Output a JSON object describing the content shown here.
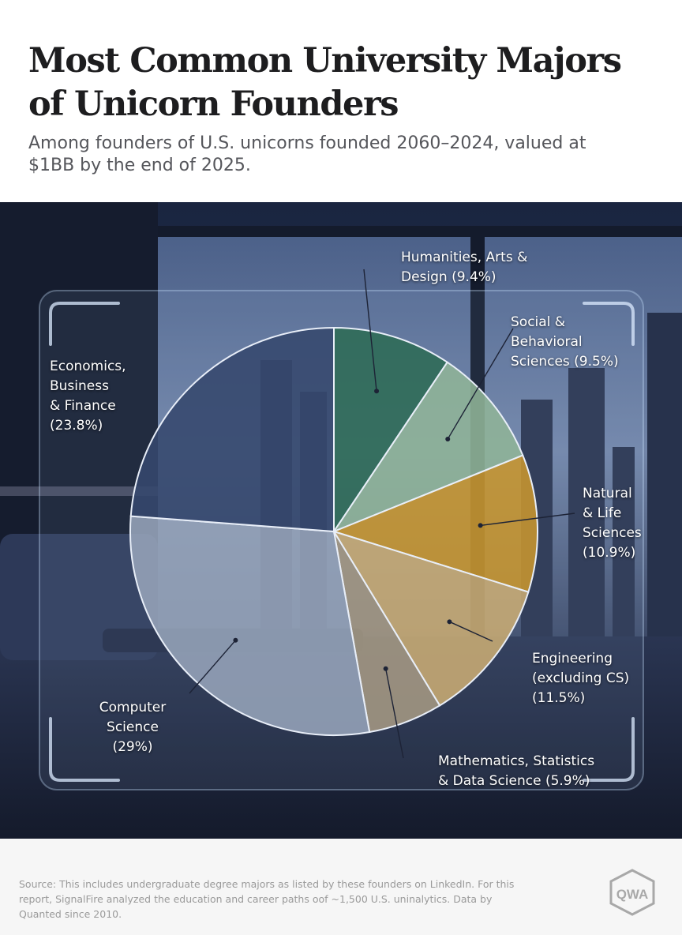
{
  "header": {
    "title_line1": "Most Common University Majors",
    "title_line2": "of Unicorn Founders",
    "subtitle_line1": "Among founders of U.S. unicorns founded 2060–2024, valued at",
    "subtitle_line2": "$1BB by the end of 2025."
  },
  "chart_data": {
    "type": "pie",
    "title": "Most Common University Majors of Unicorn Founders",
    "subtitle": "Among founders of U.S. unicorns founded 2060–2024, valued at $1BB by the end of 2025.",
    "slices": [
      {
        "label_lines": [
          "Humanities, Arts &",
          "Design (9.4%)"
        ],
        "value": 9.4,
        "color": "#2e6b55"
      },
      {
        "label_lines": [
          "Social &",
          "Behavioral",
          "Sciences (9.5%)"
        ],
        "value": 9.5,
        "color": "#90b497"
      },
      {
        "label_lines": [
          "Natural",
          "& Life",
          "Sciences",
          "(10.9%)"
        ],
        "value": 10.9,
        "color": "#c8962f"
      },
      {
        "label_lines": [
          "Engineering",
          "(excluding CS)",
          "(11.5%)"
        ],
        "value": 11.5,
        "color": "#c9ac74"
      },
      {
        "label_lines": [
          "Mathematics, Statistics",
          "& Data Science (5.9%)"
        ],
        "value": 5.9,
        "color": "#a59983"
      },
      {
        "label_lines": [
          "Computer",
          "Science",
          "(29%)"
        ],
        "value": 29,
        "color": "#96a4ba"
      },
      {
        "label_lines": [
          "Economics,",
          "Business",
          "& Finance",
          "(23.8%)"
        ],
        "value": 23.8,
        "color": "#36486d"
      }
    ]
  },
  "footer": {
    "source_line1": "Source: This includes undergraduate degree majors as listed by these founders on LinkedIn. For this",
    "source_line2": "report, SignalFire analyzed the education and career paths oof ~1,500 U.S.  uninalytics. Data by",
    "source_line3": "Quanted since 2010.",
    "logo_text": "QWA"
  }
}
